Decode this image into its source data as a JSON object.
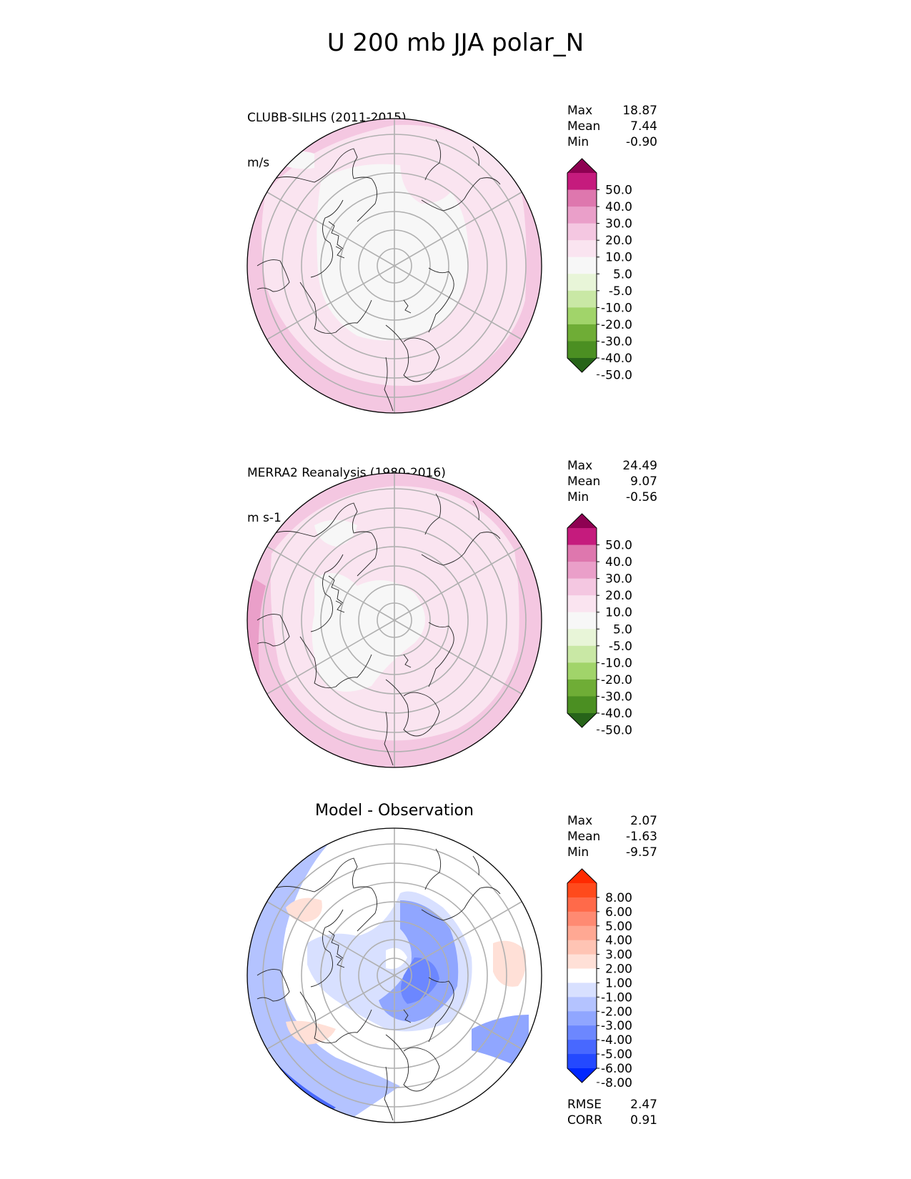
{
  "chart_data": {
    "type": "heatmap",
    "title": "U 200 mb JJA polar_N",
    "panels": [
      {
        "title_line1": "CLUBB-SILHS (2011-2015)",
        "title_line2": "m/s",
        "stats": [
          {
            "label": "Max",
            "value": "18.87"
          },
          {
            "label": "Mean",
            "value": "7.44"
          },
          {
            "label": "Min",
            "value": "-0.90"
          }
        ],
        "colorbar": {
          "ticks": [
            "50.0",
            "40.0",
            "30.0",
            "20.0",
            "10.0",
            "5.0",
            "-5.0",
            "-10.0",
            "-20.0",
            "-30.0",
            "-40.0",
            "-50.0"
          ],
          "colors": [
            "#8e0152",
            "#c51b7d",
            "#de77ae",
            "#ea9fc9",
            "#f4c7e1",
            "#fae4f0",
            "#f7f7f7",
            "#e8f5d8",
            "#c9e8a5",
            "#a1d46a",
            "#6fad36",
            "#4b8f22",
            "#276419"
          ]
        }
      },
      {
        "title_line1": "MERRA2 Reanalysis (1980-2016)",
        "title_line2": "m s-1",
        "stats": [
          {
            "label": "Max",
            "value": "24.49"
          },
          {
            "label": "Mean",
            "value": "9.07"
          },
          {
            "label": "Min",
            "value": "-0.56"
          }
        ],
        "colorbar": {
          "ticks": [
            "50.0",
            "40.0",
            "30.0",
            "20.0",
            "10.0",
            "5.0",
            "-5.0",
            "-10.0",
            "-20.0",
            "-30.0",
            "-40.0",
            "-50.0"
          ],
          "colors": [
            "#8e0152",
            "#c51b7d",
            "#de77ae",
            "#ea9fc9",
            "#f4c7e1",
            "#fae4f0",
            "#f7f7f7",
            "#e8f5d8",
            "#c9e8a5",
            "#a1d46a",
            "#6fad36",
            "#4b8f22",
            "#276419"
          ]
        }
      },
      {
        "title": "Model - Observation",
        "stats": [
          {
            "label": "Max",
            "value": "2.07"
          },
          {
            "label": "Mean",
            "value": "-1.63"
          },
          {
            "label": "Min",
            "value": "-9.57"
          }
        ],
        "extra_stats": [
          {
            "label": "RMSE",
            "value": "2.47"
          },
          {
            "label": "CORR",
            "value": "0.91"
          }
        ],
        "colorbar": {
          "ticks": [
            "8.00",
            "6.00",
            "5.00",
            "4.00",
            "3.00",
            "2.00",
            "1.00",
            "-1.00",
            "-2.00",
            "-3.00",
            "-4.00",
            "-5.00",
            "-6.00",
            "-8.00"
          ],
          "colors": [
            "#ff2a00",
            "#ff4a1c",
            "#ff6a4a",
            "#ff8a72",
            "#ffa893",
            "#ffc4b4",
            "#ffe0d7",
            "#ffffff",
            "#d8e0ff",
            "#b4c3ff",
            "#90a6ff",
            "#6c87ff",
            "#4868ff",
            "#2449ff",
            "#0027ff"
          ]
        }
      }
    ]
  }
}
